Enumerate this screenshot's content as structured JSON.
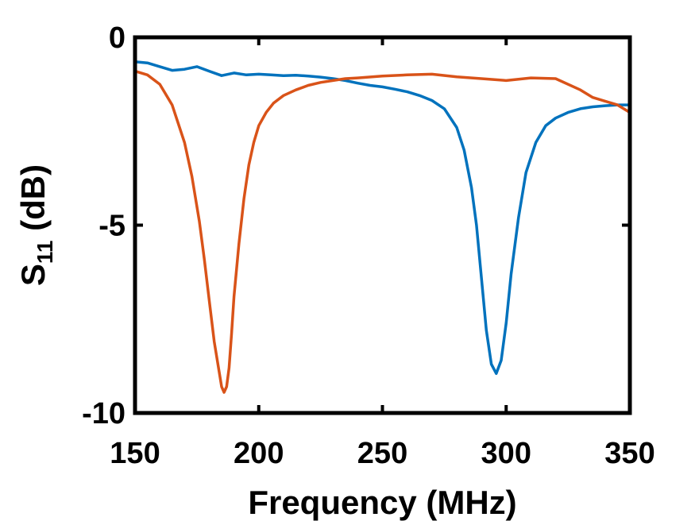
{
  "chart_data": {
    "type": "line",
    "title": "",
    "xlabel": "Frequency (MHz)",
    "ylabel": {
      "main": "S",
      "subscript": "11",
      "unit": " (dB)"
    },
    "xlim": [
      150,
      350
    ],
    "ylim": [
      -10,
      0
    ],
    "xticks": [
      150,
      200,
      250,
      300,
      350
    ],
    "yticks": [
      -10,
      -5,
      0
    ],
    "xtick_labels": [
      "150",
      "200",
      "250",
      "300",
      "350"
    ],
    "ytick_labels": [
      "-10",
      "-5",
      "0"
    ],
    "grid": false,
    "legend": "none",
    "series": [
      {
        "color": "#0072BD",
        "x": [
          150,
          155,
          160,
          165,
          170,
          175,
          180,
          185,
          190,
          195,
          200,
          205,
          210,
          215,
          220,
          225,
          230,
          235,
          240,
          245,
          250,
          255,
          260,
          265,
          270,
          275,
          280,
          283,
          286,
          288,
          290,
          292,
          294,
          296,
          298,
          300,
          302,
          305,
          308,
          312,
          316,
          320,
          325,
          330,
          335,
          340,
          345,
          350
        ],
        "y": [
          -0.65,
          -0.68,
          -0.78,
          -0.88,
          -0.85,
          -0.78,
          -0.9,
          -1.02,
          -0.95,
          -1.0,
          -0.98,
          -1.0,
          -1.02,
          -1.01,
          -1.03,
          -1.06,
          -1.1,
          -1.15,
          -1.22,
          -1.28,
          -1.32,
          -1.38,
          -1.45,
          -1.55,
          -1.68,
          -1.9,
          -2.4,
          -3.0,
          -4.0,
          -5.0,
          -6.4,
          -7.8,
          -8.7,
          -8.95,
          -8.6,
          -7.6,
          -6.3,
          -4.8,
          -3.6,
          -2.8,
          -2.35,
          -2.15,
          -2.0,
          -1.9,
          -1.85,
          -1.82,
          -1.8,
          -1.8
        ]
      },
      {
        "color": "#D95319",
        "x": [
          150,
          155,
          160,
          165,
          170,
          173,
          176,
          178,
          180,
          182,
          184,
          185,
          186,
          187,
          188,
          189,
          190,
          192,
          194,
          196,
          198,
          200,
          203,
          206,
          210,
          215,
          220,
          225,
          230,
          235,
          240,
          250,
          260,
          270,
          280,
          290,
          300,
          310,
          320,
          330,
          335,
          340,
          345,
          350
        ],
        "y": [
          -0.9,
          -1.0,
          -1.25,
          -1.8,
          -2.8,
          -3.7,
          -4.9,
          -5.9,
          -7.0,
          -8.1,
          -8.9,
          -9.3,
          -9.45,
          -9.3,
          -8.8,
          -7.9,
          -6.9,
          -5.5,
          -4.3,
          -3.4,
          -2.8,
          -2.35,
          -2.0,
          -1.75,
          -1.55,
          -1.4,
          -1.28,
          -1.2,
          -1.15,
          -1.1,
          -1.08,
          -1.03,
          -1.0,
          -0.98,
          -1.05,
          -1.1,
          -1.15,
          -1.08,
          -1.1,
          -1.4,
          -1.6,
          -1.7,
          -1.8,
          -2.0
        ]
      }
    ]
  }
}
